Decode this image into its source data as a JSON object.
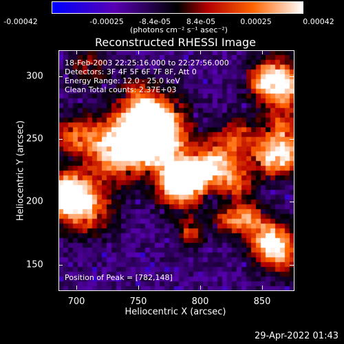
{
  "colorbar": {
    "ticks": [
      "-0.00042",
      "-0.00025",
      "-8.4e-05",
      "8.4e-05",
      "0.00025",
      "0.00042"
    ],
    "units": "(photons cm⁻² s⁻¹ asec⁻²)",
    "colors": [
      "#0000ff",
      "#5a00b4",
      "#000000",
      "#b40000",
      "#ff6400",
      "#ffffff"
    ]
  },
  "title": "Reconstructed RHESSI Image",
  "info": {
    "time": "18-Feb-2003 22:25:16.000 to 22:27:56.000",
    "detectors": "Detectors: 3F 4F 5F 6F 7F 8F, Att 0",
    "energy": "Energy Range: 12.0 - 25.0 keV",
    "clean": "Clean     Total counts: 2.37E+03"
  },
  "peak": "Position of Peak = [782,148]",
  "axes": {
    "xlabel": "Heliocentric X (arcsec)",
    "ylabel": "Heliocentric Y (arcsec)",
    "xticks": [
      "700",
      "750",
      "800",
      "850"
    ],
    "yticks": [
      "150",
      "200",
      "250",
      "300"
    ],
    "xrange": [
      680,
      870
    ],
    "yrange": [
      125,
      320
    ]
  },
  "timestamp": "29-Apr-2022 01:43"
}
